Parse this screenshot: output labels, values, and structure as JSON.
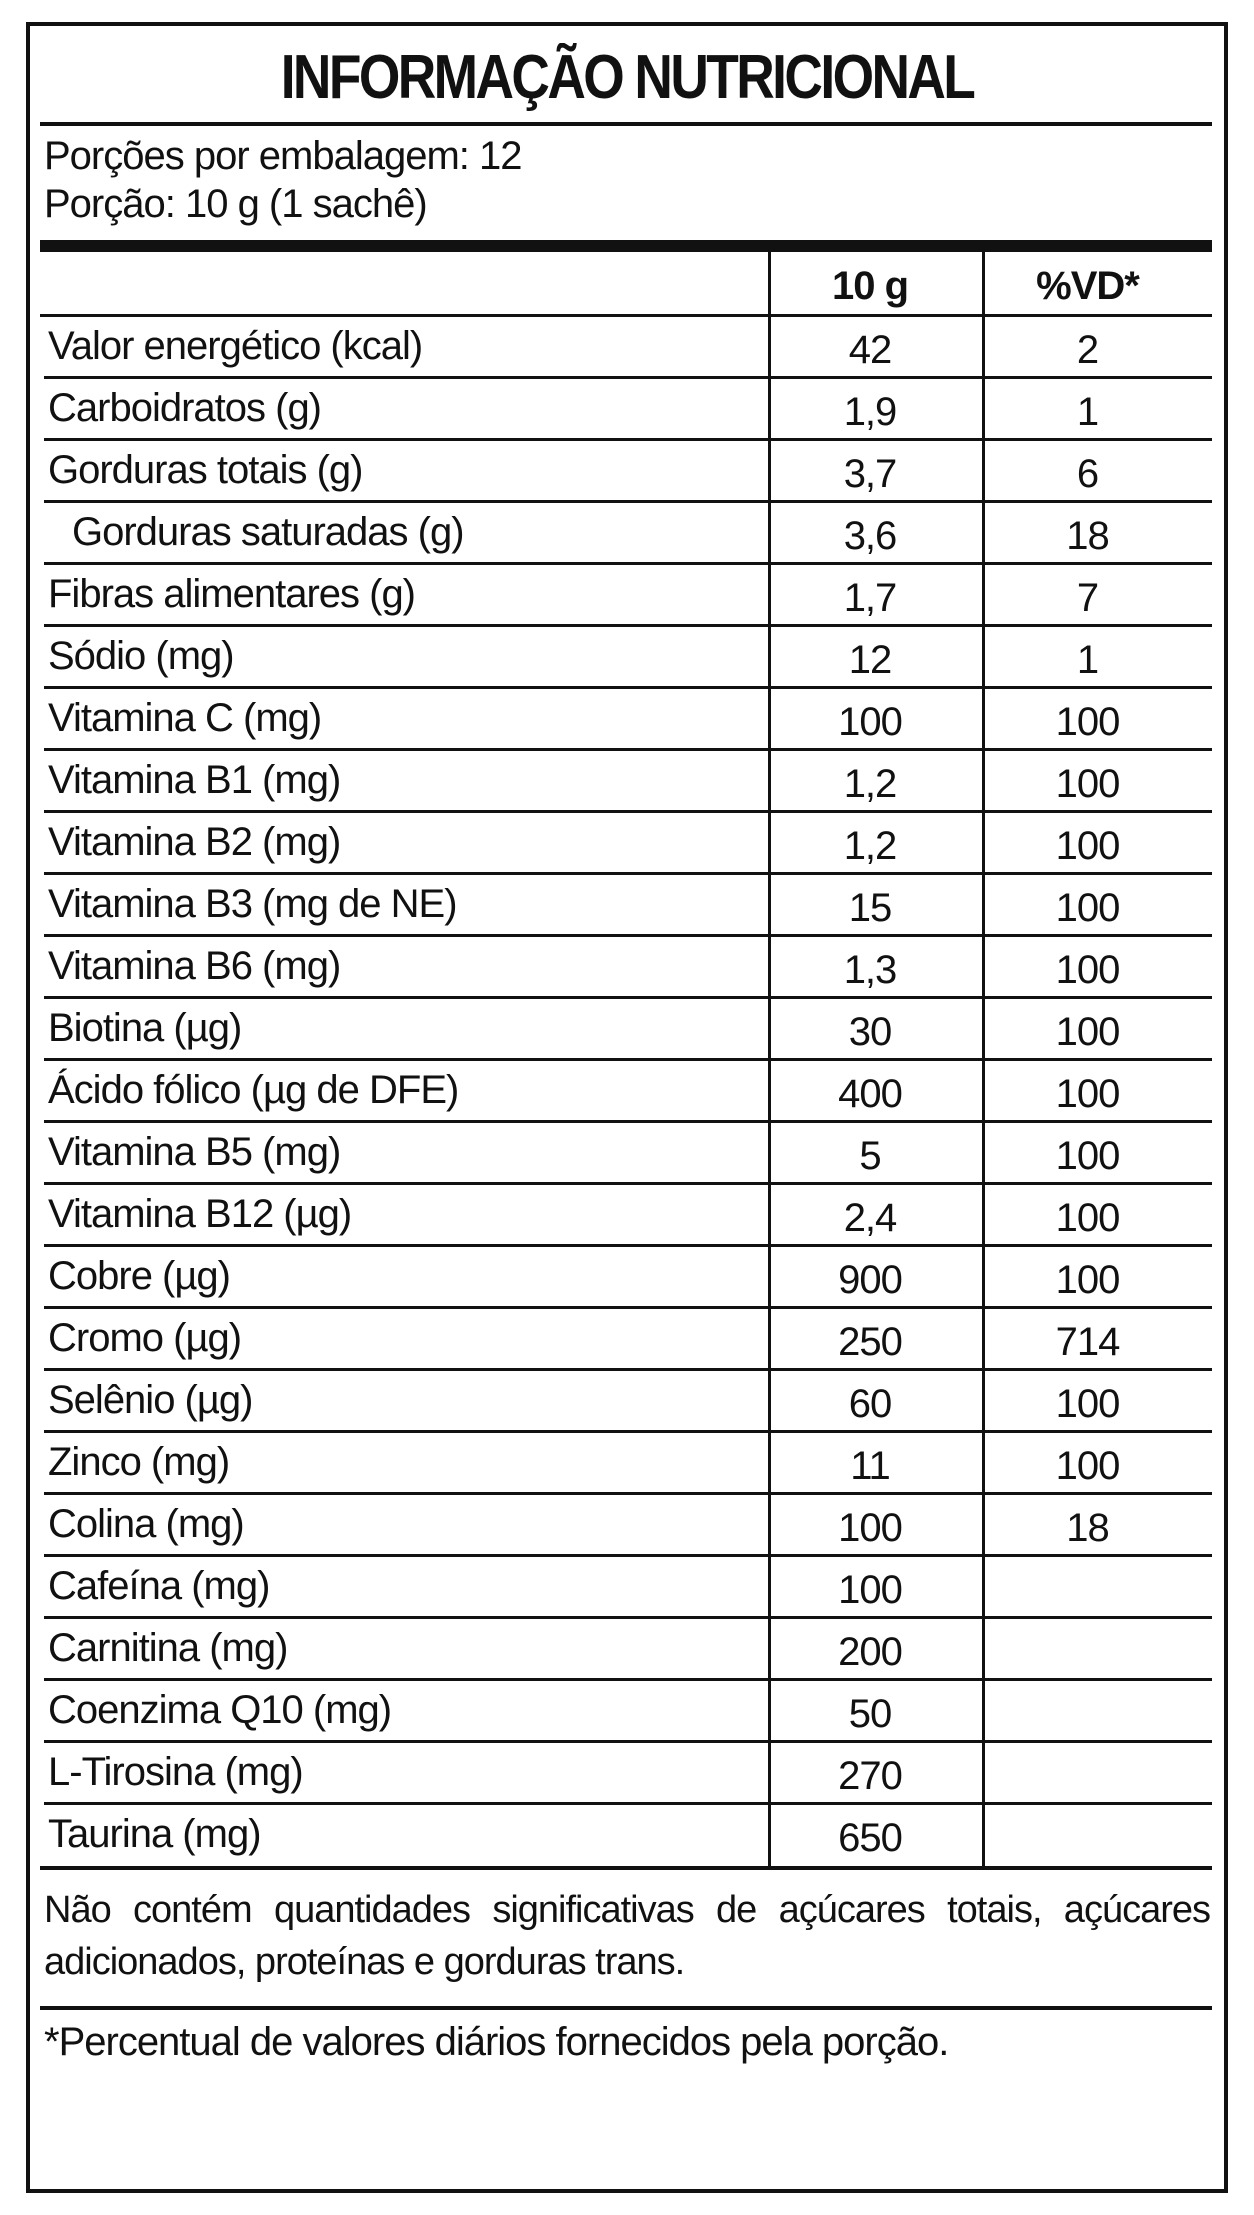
{
  "title": "INFORMAÇÃO NUTRICIONAL",
  "servings_per_package": "Porções por embalagem: 12",
  "serving_size": "Porção: 10 g (1 sachê)",
  "columns": {
    "amount": "10 g",
    "daily_value": "%VD*"
  },
  "rows": [
    {
      "name": "Valor energético (kcal)",
      "amount": "42",
      "dv": "2",
      "indent": false
    },
    {
      "name": "Carboidratos (g)",
      "amount": "1,9",
      "dv": "1",
      "indent": false
    },
    {
      "name": "Gorduras totais (g)",
      "amount": "3,7",
      "dv": "6",
      "indent": false
    },
    {
      "name": "Gorduras saturadas (g)",
      "amount": "3,6",
      "dv": "18",
      "indent": true
    },
    {
      "name": "Fibras alimentares (g)",
      "amount": "1,7",
      "dv": "7",
      "indent": false
    },
    {
      "name": "Sódio (mg)",
      "amount": "12",
      "dv": "1",
      "indent": false
    },
    {
      "name": "Vitamina C (mg)",
      "amount": "100",
      "dv": "100",
      "indent": false
    },
    {
      "name": "Vitamina B1 (mg)",
      "amount": "1,2",
      "dv": "100",
      "indent": false
    },
    {
      "name": "Vitamina B2 (mg)",
      "amount": "1,2",
      "dv": "100",
      "indent": false
    },
    {
      "name": "Vitamina B3 (mg de NE)",
      "amount": "15",
      "dv": "100",
      "indent": false
    },
    {
      "name": "Vitamina B6 (mg)",
      "amount": "1,3",
      "dv": "100",
      "indent": false
    },
    {
      "name": "Biotina (µg)",
      "amount": "30",
      "dv": "100",
      "indent": false
    },
    {
      "name": "Ácido fólico (µg de DFE)",
      "amount": "400",
      "dv": "100",
      "indent": false
    },
    {
      "name": "Vitamina B5 (mg)",
      "amount": "5",
      "dv": "100",
      "indent": false
    },
    {
      "name": "Vitamina B12 (µg)",
      "amount": "2,4",
      "dv": "100",
      "indent": false
    },
    {
      "name": "Cobre (µg)",
      "amount": "900",
      "dv": "100",
      "indent": false
    },
    {
      "name": "Cromo (µg)",
      "amount": "250",
      "dv": "714",
      "indent": false
    },
    {
      "name": "Selênio (µg)",
      "amount": "60",
      "dv": "100",
      "indent": false
    },
    {
      "name": "Zinco (mg)",
      "amount": "11",
      "dv": "100",
      "indent": false
    },
    {
      "name": "Colina (mg)",
      "amount": "100",
      "dv": "18",
      "indent": false
    },
    {
      "name": "Cafeína (mg)",
      "amount": "100",
      "dv": "",
      "indent": false
    },
    {
      "name": "Carnitina (mg)",
      "amount": "200",
      "dv": "",
      "indent": false
    },
    {
      "name": "Coenzima Q10 (mg)",
      "amount": "50",
      "dv": "",
      "indent": false
    },
    {
      "name": "L-Tirosina (mg)",
      "amount": "270",
      "dv": "",
      "indent": false
    },
    {
      "name": "Taurina (mg)",
      "amount": "650",
      "dv": "",
      "indent": false
    }
  ],
  "note_line_1": "Não contém quantidades significativas de açúcares totais, açúcares",
  "note_line_2": "adicionados, proteínas e gorduras trans.",
  "footnote": "*Percentual de valores diários fornecidos pela porção."
}
